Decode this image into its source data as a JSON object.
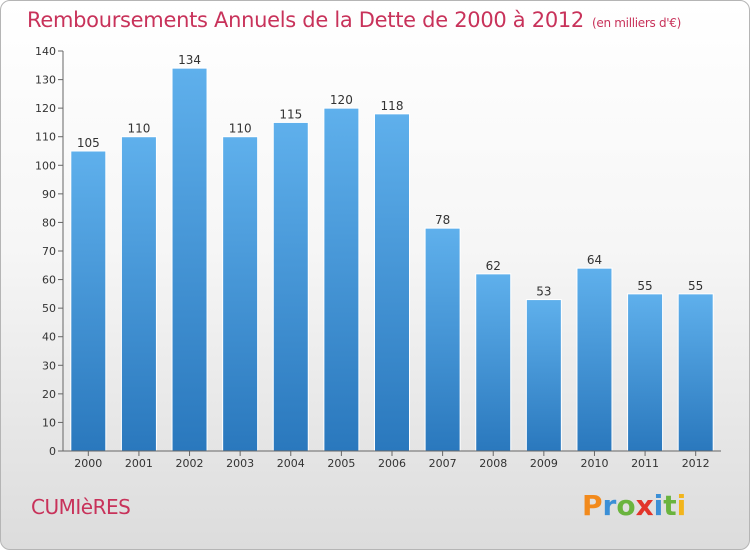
{
  "page": {
    "commune": "CUMIèRES",
    "logo_text": "Proxiti"
  },
  "colors": {
    "title": "#c8325a",
    "bar_top": "#5fb0ec",
    "bar_bottom": "#2a78bd",
    "axis": "#666666",
    "gridline": "#dddddd",
    "logo_letters": [
      "#f28a1c",
      "#3b8fd6",
      "#6ab43e",
      "#e2342a",
      "#3b8fd6",
      "#6ab43e",
      "#f2b51c"
    ]
  },
  "chart_data": {
    "type": "bar",
    "title": "Remboursements Annuels de la Dette de 2000 à 2012",
    "unit": "(en milliers d'€)",
    "categories": [
      "2000",
      "2001",
      "2002",
      "2003",
      "2004",
      "2005",
      "2006",
      "2007",
      "2008",
      "2009",
      "2010",
      "2011",
      "2012"
    ],
    "values": [
      105,
      110,
      134,
      110,
      115,
      120,
      118,
      78,
      62,
      53,
      64,
      55,
      55
    ],
    "ylim": [
      0,
      140
    ],
    "yticks": [
      0,
      10,
      20,
      30,
      40,
      50,
      60,
      70,
      80,
      90,
      100,
      110,
      120,
      130,
      140
    ],
    "xlabel": "",
    "ylabel": "",
    "grid": false,
    "data_labels": true
  }
}
